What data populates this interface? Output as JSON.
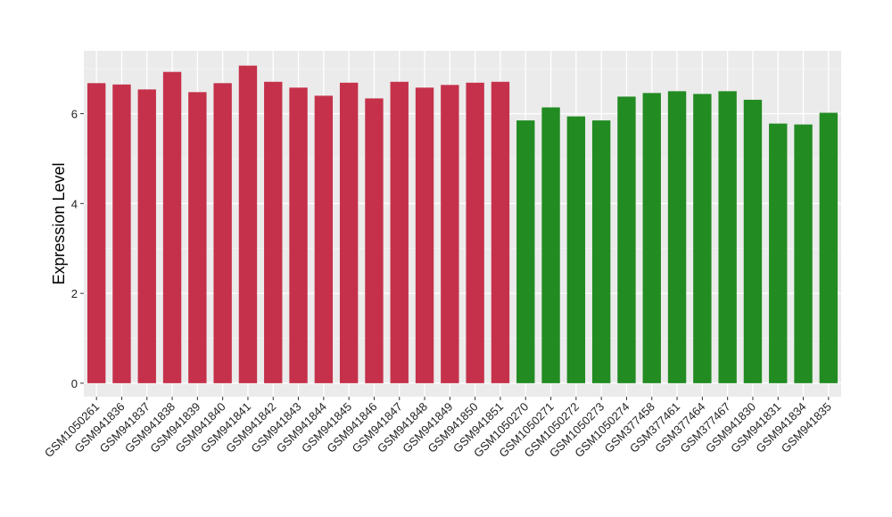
{
  "chart_data": {
    "type": "bar",
    "title": "",
    "xlabel": "",
    "ylabel": "Expression Level",
    "ylim": [
      -0.3,
      7.4
    ],
    "yticks": [
      0,
      2,
      4,
      6
    ],
    "grid": true,
    "background": "#ebebeb",
    "categories": [
      "GSM1050261",
      "GSM941836",
      "GSM941837",
      "GSM941838",
      "GSM941839",
      "GSM941840",
      "GSM941841",
      "GSM941842",
      "GSM941843",
      "GSM941844",
      "GSM941845",
      "GSM941846",
      "GSM941847",
      "GSM941848",
      "GSM941849",
      "GSM941850",
      "GSM941851",
      "GSM1050270",
      "GSM1050271",
      "GSM1050272",
      "GSM1050273",
      "GSM1050274",
      "GSM377458",
      "GSM377461",
      "GSM377464",
      "GSM377467",
      "GSM941830",
      "GSM941831",
      "GSM941834",
      "GSM941835"
    ],
    "values": [
      6.68,
      6.65,
      6.54,
      6.93,
      6.48,
      6.68,
      7.07,
      6.71,
      6.58,
      6.4,
      6.69,
      6.34,
      6.71,
      6.58,
      6.64,
      6.69,
      6.71,
      5.85,
      6.14,
      5.94,
      5.85,
      6.38,
      6.46,
      6.5,
      6.44,
      6.5,
      6.31,
      5.78,
      5.76,
      6.02
    ],
    "colors": [
      "#c5314a",
      "#c5314a",
      "#c5314a",
      "#c5314a",
      "#c5314a",
      "#c5314a",
      "#c5314a",
      "#c5314a",
      "#c5314a",
      "#c5314a",
      "#c5314a",
      "#c5314a",
      "#c5314a",
      "#c5314a",
      "#c5314a",
      "#c5314a",
      "#c5314a",
      "#228b22",
      "#228b22",
      "#228b22",
      "#228b22",
      "#228b22",
      "#228b22",
      "#228b22",
      "#228b22",
      "#228b22",
      "#228b22",
      "#228b22",
      "#228b22",
      "#228b22"
    ]
  }
}
